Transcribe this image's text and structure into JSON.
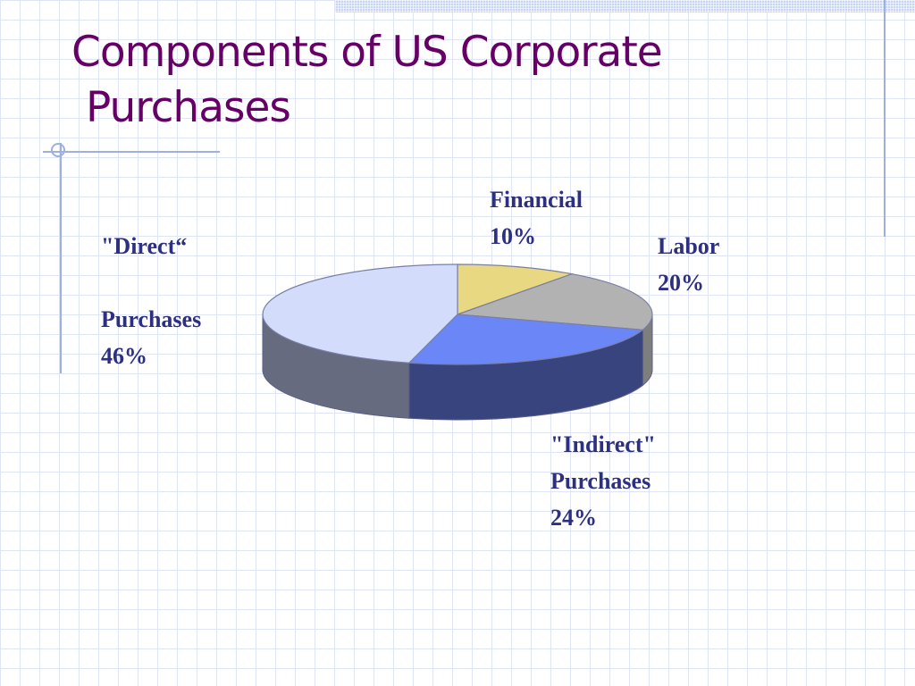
{
  "slide": {
    "title_line1": "Components of US Corporate",
    "title_line2": "Purchases"
  },
  "chart_data": {
    "type": "pie",
    "title": "Components of US Corporate Purchases",
    "three_d": true,
    "slices": [
      {
        "label": "Financial",
        "value": 10,
        "display_value": "10%",
        "color": "#e8d882",
        "side_color": "#b8a860"
      },
      {
        "label": "Labor",
        "value": 20,
        "display_value": "20%",
        "color": "#b2b2b2",
        "side_color": "#7e7e7e"
      },
      {
        "label": "\"Indirect\" Purchases",
        "value": 24,
        "display_value": "24%",
        "color": "#6b87f7",
        "side_color": "#38447e"
      },
      {
        "label": "\"Direct\" Purchases",
        "value": 46,
        "display_value": "46%",
        "color": "#d3ddfb",
        "side_color": "#666b80"
      }
    ]
  },
  "labels": {
    "financial": {
      "name": "Financial",
      "percent": "10%"
    },
    "labor": {
      "name": "Labor",
      "percent": "20%"
    },
    "indirect": {
      "line1": "\"Indirect\"",
      "line2": "Purchases",
      "percent": "24%"
    },
    "direct": {
      "line1": "\"Direct“",
      "line2": "Purchases",
      "percent": "46%"
    }
  }
}
